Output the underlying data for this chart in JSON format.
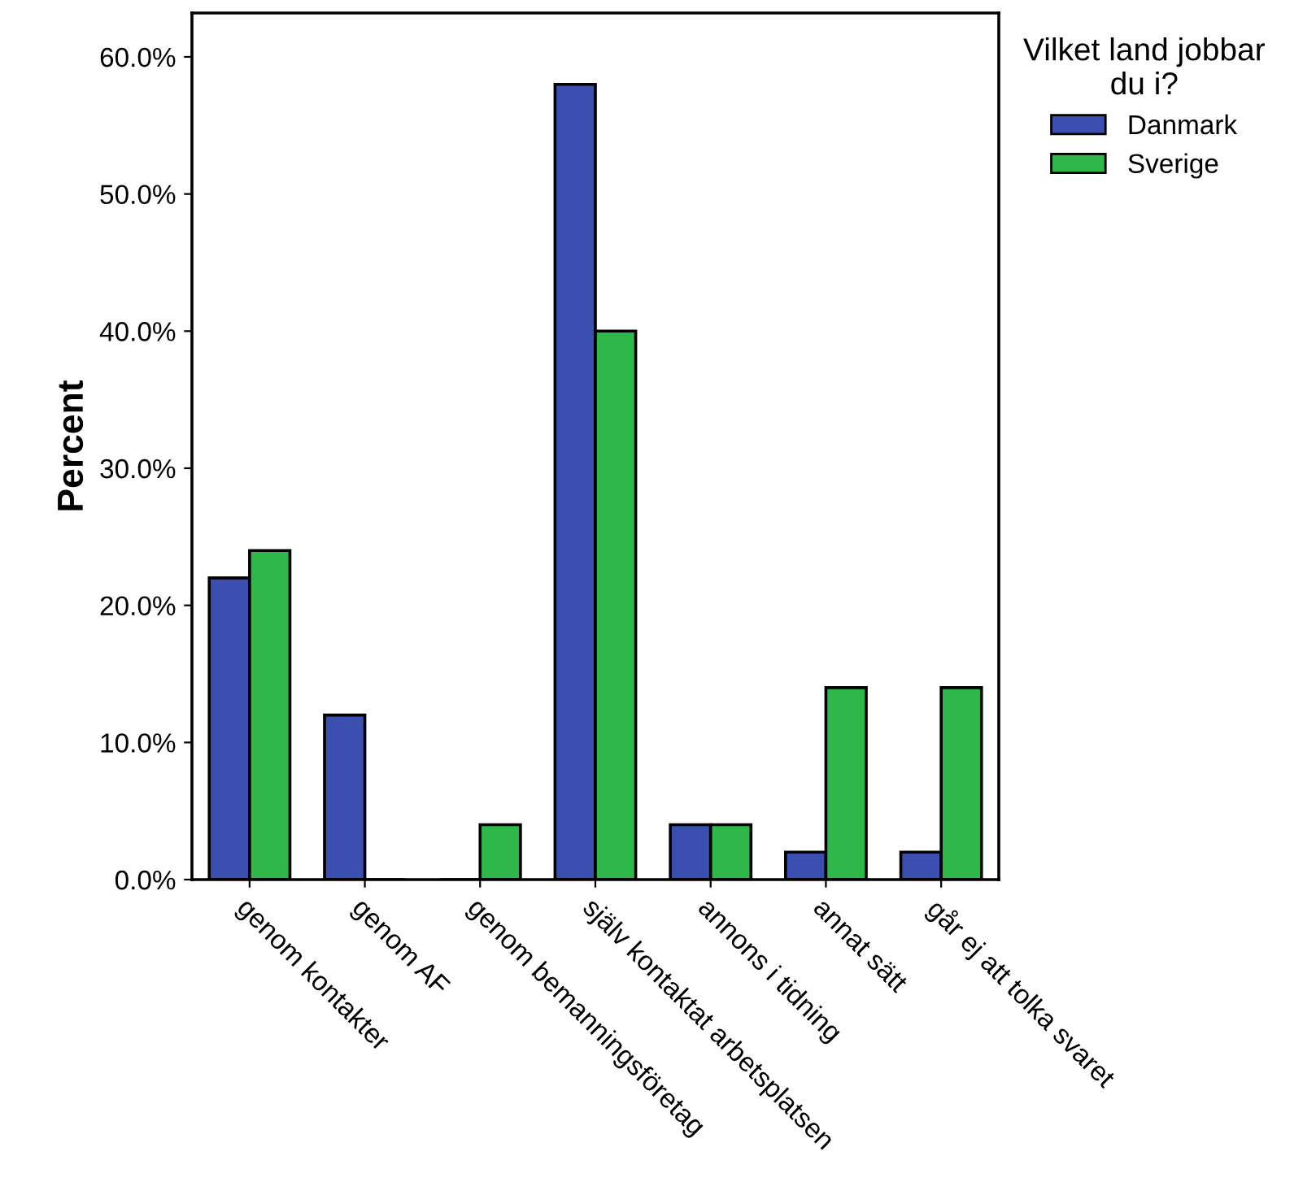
{
  "chart_data": {
    "type": "bar",
    "ylabel": "Percent",
    "legend_title": "Vilket land jobbar\ndu i?",
    "legend": "top right",
    "grid": false,
    "categories": [
      "genom kontakter",
      "genom AF",
      "genom bemanningsföretag",
      "själv kontaktat arbetsplatsen",
      "annons i tidning",
      "annat sätt",
      "går ej att tolka svaret"
    ],
    "series": [
      {
        "name": "Danmark",
        "color": "#3b4fb0",
        "values": [
          22,
          12,
          0,
          58,
          4,
          2,
          2
        ]
      },
      {
        "name": "Sverige",
        "color": "#2fb84a",
        "values": [
          24,
          0,
          4,
          40,
          4,
          14,
          14
        ]
      }
    ],
    "ylim": [
      0,
      63.2
    ],
    "yticks": [
      {
        "value": 0,
        "label": "0.0%"
      },
      {
        "value": 10,
        "label": "10.0%"
      },
      {
        "value": 20,
        "label": "20.0%"
      },
      {
        "value": 30,
        "label": "30.0%"
      },
      {
        "value": 40,
        "label": "40.0%"
      },
      {
        "value": 50,
        "label": "50.0%"
      },
      {
        "value": 60,
        "label": "60.0%"
      }
    ]
  }
}
